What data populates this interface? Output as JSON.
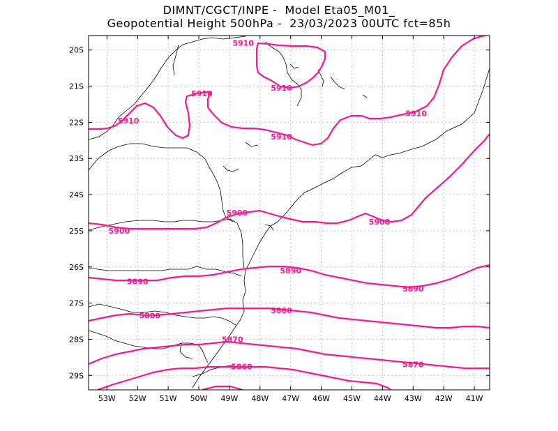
{
  "title": {
    "line1": "DIMNT/CGCT/INPE -  Model Eta05_M01_",
    "line2": "Geopotential Height 500hPa -  23/03/2023 00UTC fct=85h"
  },
  "colors": {
    "contour": "#ff1493",
    "coast": "#000000",
    "grid": "#aaaaaa"
  },
  "axes": {
    "lat_labels": [
      "20S",
      "21S",
      "22S",
      "23S",
      "24S",
      "25S",
      "26S",
      "27S",
      "28S",
      "29S"
    ],
    "lon_labels": [
      "53W",
      "52W",
      "51W",
      "50W",
      "49W",
      "48W",
      "47W",
      "46W",
      "45W",
      "44W",
      "43W",
      "42W",
      "41W"
    ]
  },
  "contour_labels": [
    {
      "text": "5910",
      "lon": -48.55,
      "lat": -19.8
    },
    {
      "text": "5910",
      "lon": -47.3,
      "lat": -21.05
    },
    {
      "text": "5910",
      "lon": -49.9,
      "lat": -21.2
    },
    {
      "text": "5910",
      "lon": -52.3,
      "lat": -21.95
    },
    {
      "text": "5910",
      "lon": -47.3,
      "lat": -22.4
    },
    {
      "text": "5910",
      "lon": -42.9,
      "lat": -21.75
    },
    {
      "text": "5900",
      "lon": -48.75,
      "lat": -24.5
    },
    {
      "text": "5900",
      "lon": -52.6,
      "lat": -25.0
    },
    {
      "text": "5900",
      "lon": -44.1,
      "lat": -24.75
    },
    {
      "text": "5890",
      "lon": -47.0,
      "lat": -26.1
    },
    {
      "text": "5890",
      "lon": -52.0,
      "lat": -26.4
    },
    {
      "text": "5890",
      "lon": -43.0,
      "lat": -26.6
    },
    {
      "text": "5880",
      "lon": -51.6,
      "lat": -27.35
    },
    {
      "text": "5880",
      "lon": -47.3,
      "lat": -27.2
    },
    {
      "text": "5870",
      "lon": -48.9,
      "lat": -28.0
    },
    {
      "text": "5870",
      "lon": -43.0,
      "lat": -28.7
    },
    {
      "text": "5860",
      "lon": -48.6,
      "lat": -28.75
    }
  ]
}
